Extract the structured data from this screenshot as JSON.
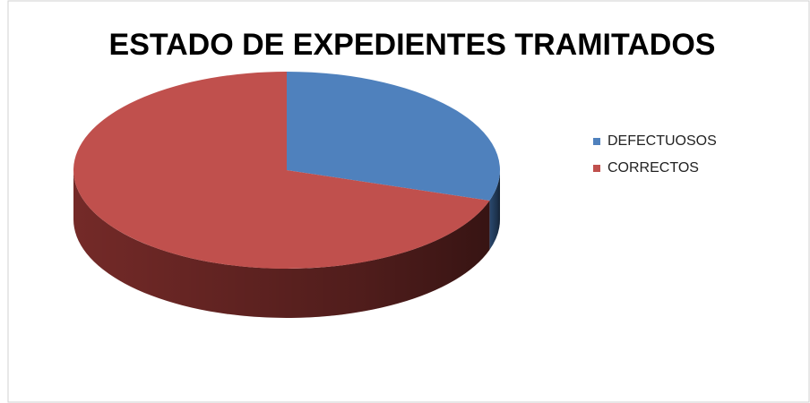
{
  "chart_data": {
    "type": "pie3d",
    "title": "ESTADO DE EXPEDIENTES TRAMITADOS",
    "categories": [
      "DEFECTUOSOS",
      "CORRECTOS"
    ],
    "values": [
      30,
      70
    ],
    "colors": [
      "#4f81bd",
      "#c0504d"
    ],
    "side_colors": [
      "#2c4d75",
      "#7a2c2a"
    ],
    "legend": "right"
  }
}
